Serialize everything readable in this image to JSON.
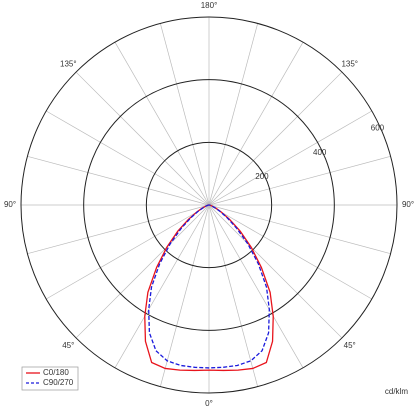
{
  "chart_data": {
    "type": "polar",
    "unit_label": "cd/klm",
    "angles": [
      -90,
      -85,
      -80,
      -75,
      -70,
      -65,
      -60,
      -55,
      -50,
      -45,
      -40,
      -35,
      -30,
      -25,
      -20,
      -15,
      -10,
      -5,
      0,
      5,
      10,
      15,
      20,
      25,
      30,
      35,
      40,
      45,
      50,
      55,
      60,
      65,
      70,
      75,
      80,
      85,
      90
    ],
    "series": [
      {
        "name": "C0/180",
        "color": "#e8141c",
        "dash": false,
        "values": [
          0,
          1,
          3,
          6,
          12,
          25,
          45,
          80,
          130,
          190,
          260,
          340,
          410,
          480,
          535,
          540,
          535,
          530,
          527,
          530,
          535,
          540,
          535,
          480,
          410,
          340,
          260,
          190,
          130,
          80,
          45,
          25,
          12,
          6,
          3,
          1,
          0
        ]
      },
      {
        "name": "C90/270",
        "color": "#1a1adc",
        "dash": true,
        "values": [
          0,
          1,
          3,
          5,
          10,
          20,
          40,
          70,
          115,
          175,
          245,
          320,
          385,
          450,
          495,
          515,
          520,
          520,
          520,
          520,
          520,
          515,
          495,
          450,
          385,
          320,
          245,
          175,
          115,
          70,
          40,
          20,
          10,
          5,
          3,
          1,
          0
        ]
      }
    ],
    "rlim": [
      0,
      600
    ],
    "rticks": [
      200,
      400,
      600
    ],
    "angle_grid_step": 15,
    "angle_ticks": [
      {
        "value": 180,
        "label": "180°"
      },
      {
        "value": -135,
        "label": "135°"
      },
      {
        "value": 135,
        "label": "135°"
      },
      {
        "value": -90,
        "label": "90°"
      },
      {
        "value": 90,
        "label": "90°"
      },
      {
        "value": -45,
        "label": "45°"
      },
      {
        "value": 45,
        "label": "45°"
      },
      {
        "value": 0,
        "label": "0°"
      }
    ],
    "legend": "lower left"
  }
}
